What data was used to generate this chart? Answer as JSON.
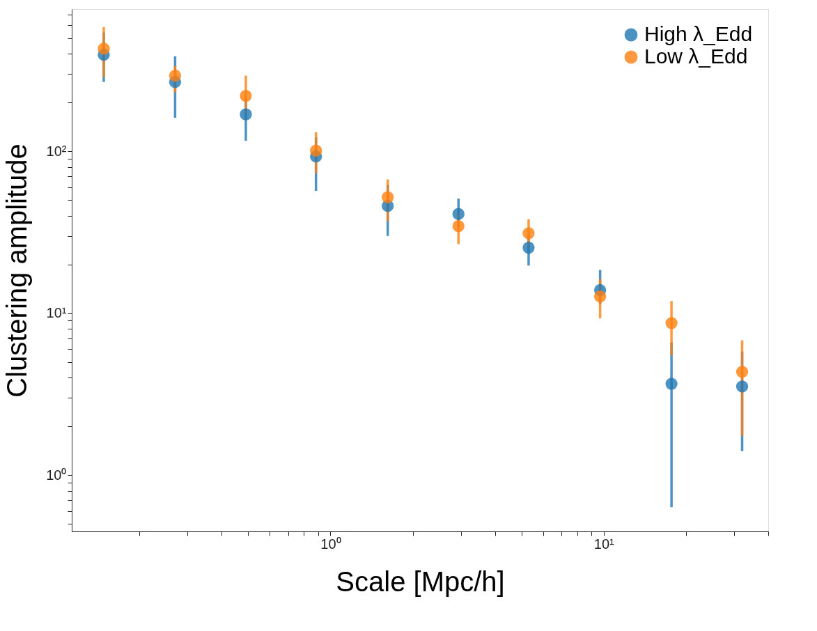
{
  "chart_data": {
    "type": "scatter",
    "xlabel": "Scale [Mpc/h]",
    "ylabel": "Clustering amplitude",
    "log": "xy",
    "grid": false,
    "legend": "top right",
    "marker": "circle",
    "x": [
      0.148,
      0.27,
      0.49,
      0.885,
      1.62,
      2.94,
      5.31,
      9.7,
      17.7,
      32.1
    ],
    "xlim": [
      0.113,
      40
    ],
    "ylim": [
      0.45,
      755
    ],
    "xticks": [
      {
        "value": 0.2,
        "label": null
      },
      {
        "value": 0.3,
        "label": null
      },
      {
        "value": 0.4,
        "label": null
      },
      {
        "value": 0.5,
        "label": null
      },
      {
        "value": 0.6,
        "label": null
      },
      {
        "value": 0.7,
        "label": null
      },
      {
        "value": 0.8,
        "label": null
      },
      {
        "value": 0.9,
        "label": null
      },
      {
        "value": 1,
        "label": "10⁰"
      },
      {
        "value": 2,
        "label": null
      },
      {
        "value": 3,
        "label": null
      },
      {
        "value": 4,
        "label": null
      },
      {
        "value": 5,
        "label": null
      },
      {
        "value": 6,
        "label": null
      },
      {
        "value": 7,
        "label": null
      },
      {
        "value": 8,
        "label": null
      },
      {
        "value": 9,
        "label": null
      },
      {
        "value": 10,
        "label": "10¹"
      },
      {
        "value": 20,
        "label": null
      },
      {
        "value": 30,
        "label": null
      },
      {
        "value": 40,
        "label": null
      }
    ],
    "yticks": [
      {
        "value": 0.5,
        "label": null
      },
      {
        "value": 0.6,
        "label": null
      },
      {
        "value": 0.7,
        "label": null
      },
      {
        "value": 0.8,
        "label": null
      },
      {
        "value": 0.9,
        "label": null
      },
      {
        "value": 1,
        "label": "10⁰"
      },
      {
        "value": 2,
        "label": null
      },
      {
        "value": 3,
        "label": null
      },
      {
        "value": 4,
        "label": null
      },
      {
        "value": 5,
        "label": null
      },
      {
        "value": 6,
        "label": null
      },
      {
        "value": 7,
        "label": null
      },
      {
        "value": 8,
        "label": null
      },
      {
        "value": 9,
        "label": null
      },
      {
        "value": 10,
        "label": "10¹"
      },
      {
        "value": 20,
        "label": null
      },
      {
        "value": 30,
        "label": null
      },
      {
        "value": 40,
        "label": null
      },
      {
        "value": 50,
        "label": null
      },
      {
        "value": 60,
        "label": null
      },
      {
        "value": 70,
        "label": null
      },
      {
        "value": 80,
        "label": null
      },
      {
        "value": 90,
        "label": null
      },
      {
        "value": 100,
        "label": "10²"
      },
      {
        "value": 200,
        "label": null
      },
      {
        "value": 300,
        "label": null
      },
      {
        "value": 400,
        "label": null
      },
      {
        "value": 500,
        "label": null
      },
      {
        "value": 600,
        "label": null
      },
      {
        "value": 700,
        "label": null
      }
    ],
    "series": [
      {
        "name": "High λ_Edd",
        "color": "#1f77b4",
        "values": [
          394,
          268,
          169,
          93,
          46,
          41,
          25.4,
          13.9,
          3.67,
          3.53
        ],
        "errors": [
          [
            268,
            540
          ],
          [
            161,
            386
          ],
          [
            116,
            220
          ],
          [
            57,
            122
          ],
          [
            30,
            62
          ],
          [
            34,
            51
          ],
          [
            19.7,
            30.5
          ],
          [
            11.4,
            18.5
          ],
          [
            0.635,
            6.6
          ],
          [
            1.41,
            5.8
          ]
        ]
      },
      {
        "name": "Low λ_Edd",
        "color": "#ff7f0e",
        "values": [
          430,
          293,
          220,
          101,
          52,
          34.5,
          31.2,
          12.7,
          8.7,
          4.35
        ],
        "errors": [
          [
            287,
            584
          ],
          [
            231,
            336
          ],
          [
            169,
            293
          ],
          [
            73,
            131
          ],
          [
            37,
            67
          ],
          [
            26.7,
            42
          ],
          [
            25.4,
            38
          ],
          [
            9.3,
            16.3
          ],
          [
            5.5,
            11.9
          ],
          [
            1.75,
            6.8
          ]
        ]
      }
    ]
  }
}
